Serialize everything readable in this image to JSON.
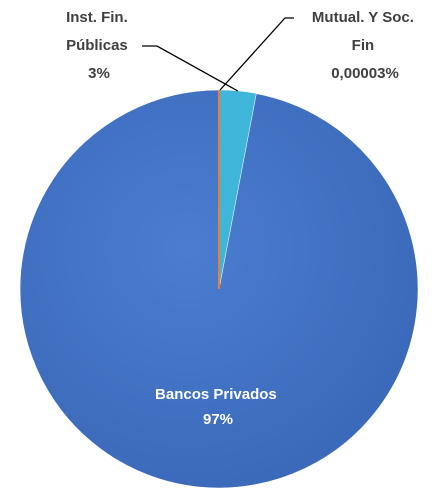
{
  "chart_data": {
    "type": "pie",
    "title": "",
    "slices": [
      {
        "name": "Bancos Privados",
        "value": 97,
        "label_lines": [
          "Bancos Privados",
          "97%"
        ],
        "color": "#4472C4"
      },
      {
        "name": "Inst. Fin. Públicas",
        "value": 3,
        "label_lines": [
          "Inst. Fin.",
          "Públicas",
          "3%"
        ],
        "color": "#3FB6D9"
      },
      {
        "name": "Mutual. Y Soc. Fin",
        "value": 3e-05,
        "label_lines": [
          "Mutual. Y Soc.",
          "Fin",
          "0,00003%"
        ],
        "color": "#ED7D31"
      }
    ],
    "start_angle_deg": 0,
    "direction": "counterclockwise",
    "legend": "none",
    "label_colors": {
      "inside": "#ffffff",
      "outside": "#404040"
    }
  }
}
